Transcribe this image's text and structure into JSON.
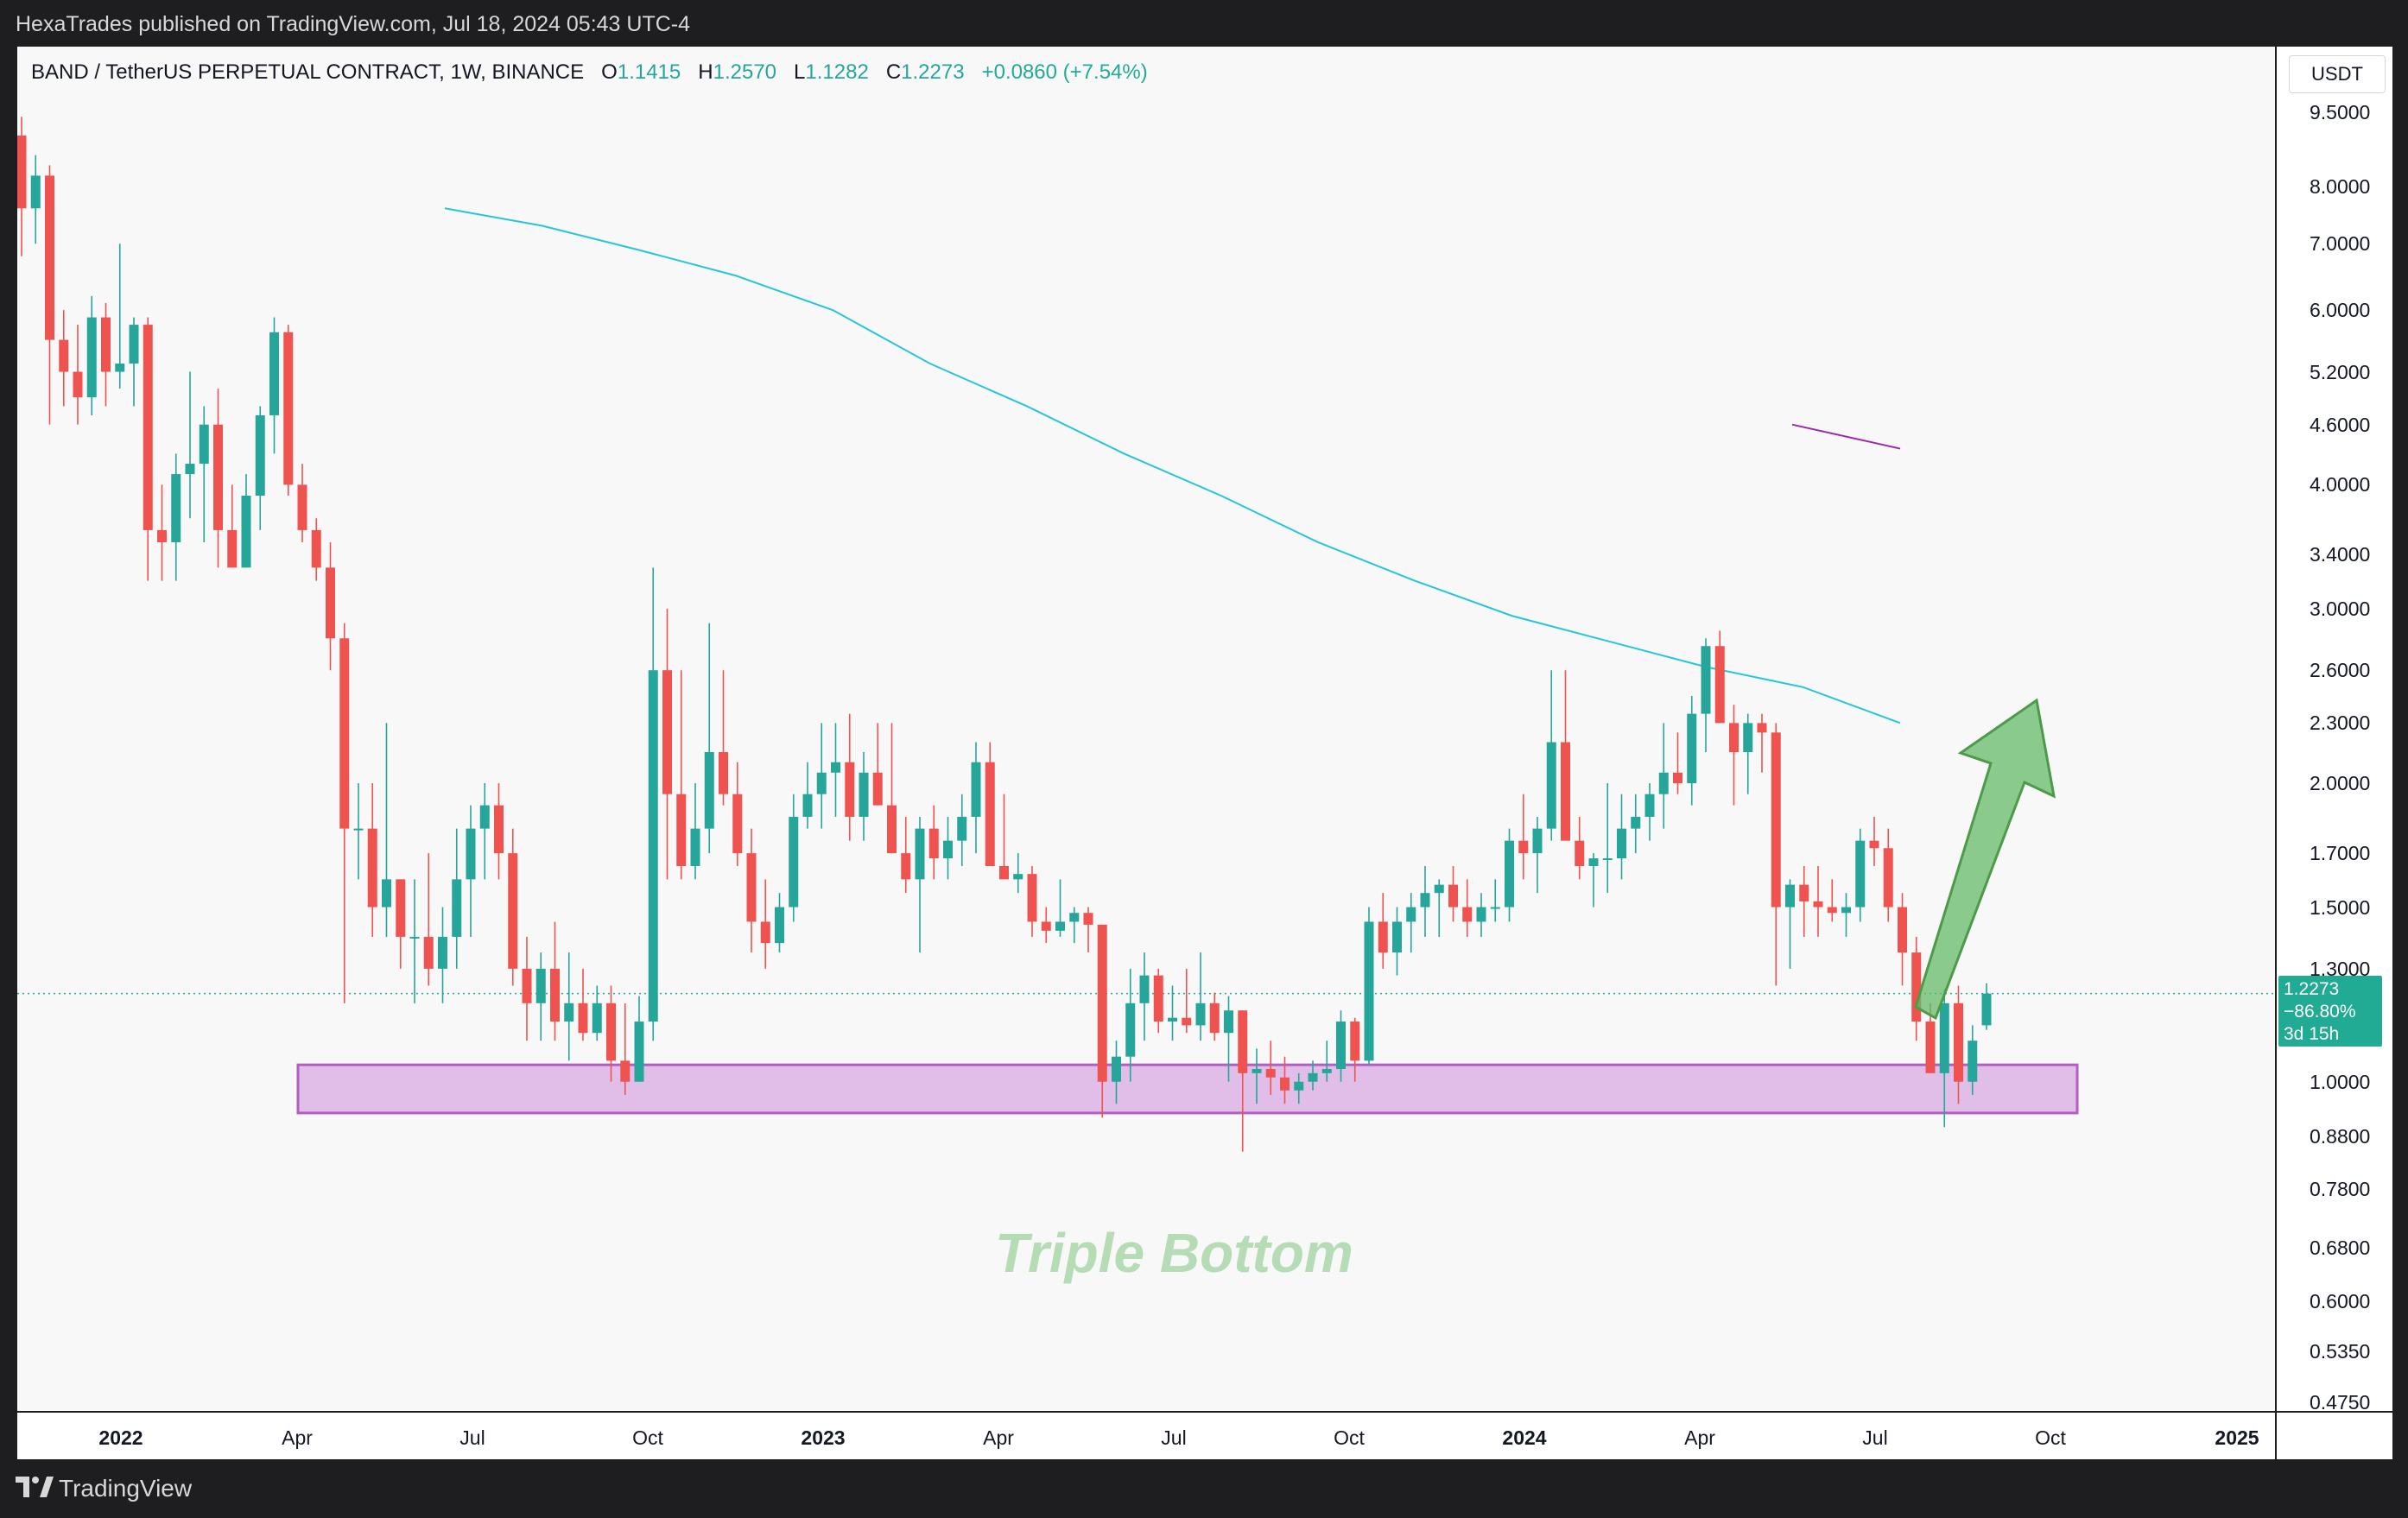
{
  "header": {
    "published": "HexaTrades published on TradingView.com, Jul 18, 2024 05:43 UTC-4"
  },
  "legend": {
    "symbol": "BAND / TetherUS PERPETUAL CONTRACT, 1W, BINANCE",
    "o_label": "O",
    "o_value": "1.1415",
    "h_label": "H",
    "h_value": "1.2570",
    "l_label": "L",
    "l_value": "1.1282",
    "c_label": "C",
    "c_value": "1.2273",
    "change": "+0.0860 (+7.54%)"
  },
  "currency": "USDT",
  "price_label": {
    "price": "1.2273",
    "change": "−86.80%",
    "countdown": "3d 15h"
  },
  "annotation": {
    "text": "Triple Bottom"
  },
  "footer": {
    "brand": "TradingView"
  },
  "colors": {
    "up": "#26a69a",
    "down": "#ef5350",
    "ma_long": "#26c6da",
    "ma_short": "#9c27b0",
    "zone": "#e1bee7",
    "arrow": "#66bb6a"
  },
  "price_axis": [
    "9.5000",
    "8.0000",
    "7.0000",
    "6.0000",
    "5.2000",
    "4.6000",
    "4.0000",
    "3.4000",
    "3.0000",
    "2.6000",
    "2.3000",
    "2.0000",
    "1.7000",
    "1.5000",
    "1.3000",
    "1.0000",
    "0.8800",
    "0.7800",
    "0.6800",
    "0.6000",
    "0.5350",
    "0.4750"
  ],
  "time_axis": [
    {
      "label": "2022",
      "year": true
    },
    {
      "label": "Apr",
      "year": false
    },
    {
      "label": "Jul",
      "year": false
    },
    {
      "label": "Oct",
      "year": false
    },
    {
      "label": "2023",
      "year": true
    },
    {
      "label": "Apr",
      "year": false
    },
    {
      "label": "Jul",
      "year": false
    },
    {
      "label": "Oct",
      "year": false
    },
    {
      "label": "2024",
      "year": true
    },
    {
      "label": "Apr",
      "year": false
    },
    {
      "label": "Jul",
      "year": false
    },
    {
      "label": "Oct",
      "year": false
    },
    {
      "label": "2025",
      "year": true
    }
  ],
  "chart_data": {
    "type": "candlestick",
    "interval": "1W",
    "y_scale": "log",
    "ylim": [
      0.47,
      9.6
    ],
    "current_price": 1.2273,
    "support_zone": [
      0.93,
      1.04
    ],
    "series": [
      {
        "name": "BAND/USDT",
        "ohlc": [
          [
            9.0,
            9.4,
            6.8,
            7.6
          ],
          [
            7.6,
            8.6,
            7.0,
            8.2
          ],
          [
            8.2,
            8.4,
            4.6,
            5.6
          ],
          [
            5.6,
            6.0,
            4.8,
            5.2
          ],
          [
            5.2,
            5.8,
            4.6,
            4.9
          ],
          [
            4.9,
            6.2,
            4.7,
            5.9
          ],
          [
            5.9,
            6.1,
            4.8,
            5.2
          ],
          [
            5.2,
            7.0,
            5.0,
            5.3
          ],
          [
            5.3,
            5.9,
            4.8,
            5.8
          ],
          [
            5.8,
            5.9,
            3.2,
            3.6
          ],
          [
            3.6,
            4.0,
            3.2,
            3.5
          ],
          [
            3.5,
            4.3,
            3.2,
            4.1
          ],
          [
            4.1,
            5.2,
            3.7,
            4.2
          ],
          [
            4.2,
            4.8,
            3.5,
            4.6
          ],
          [
            4.6,
            5.0,
            3.3,
            3.6
          ],
          [
            3.6,
            4.0,
            3.3,
            3.3
          ],
          [
            3.3,
            4.1,
            3.3,
            3.9
          ],
          [
            3.9,
            4.8,
            3.6,
            4.7
          ],
          [
            4.7,
            5.9,
            4.3,
            5.7
          ],
          [
            5.7,
            5.8,
            3.9,
            4.0
          ],
          [
            4.0,
            4.2,
            3.5,
            3.6
          ],
          [
            3.6,
            3.7,
            3.2,
            3.3
          ],
          [
            3.3,
            3.5,
            2.6,
            2.8
          ],
          [
            2.8,
            2.9,
            1.2,
            1.8
          ],
          [
            1.8,
            2.0,
            1.6,
            1.8
          ],
          [
            1.8,
            2.0,
            1.4,
            1.5
          ],
          [
            1.5,
            2.3,
            1.4,
            1.6
          ],
          [
            1.6,
            1.6,
            1.3,
            1.4
          ],
          [
            1.4,
            1.6,
            1.2,
            1.4
          ],
          [
            1.4,
            1.7,
            1.25,
            1.3
          ],
          [
            1.3,
            1.5,
            1.2,
            1.4
          ],
          [
            1.4,
            1.8,
            1.3,
            1.6
          ],
          [
            1.6,
            1.9,
            1.4,
            1.8
          ],
          [
            1.8,
            2.0,
            1.6,
            1.9
          ],
          [
            1.9,
            2.0,
            1.6,
            1.7
          ],
          [
            1.7,
            1.8,
            1.25,
            1.3
          ],
          [
            1.3,
            1.4,
            1.1,
            1.2
          ],
          [
            1.2,
            1.35,
            1.1,
            1.3
          ],
          [
            1.3,
            1.45,
            1.1,
            1.15
          ],
          [
            1.15,
            1.35,
            1.05,
            1.2
          ],
          [
            1.2,
            1.3,
            1.1,
            1.12
          ],
          [
            1.12,
            1.25,
            1.1,
            1.2
          ],
          [
            1.2,
            1.25,
            1.0,
            1.05
          ],
          [
            1.05,
            1.2,
            0.97,
            1.0
          ],
          [
            1.0,
            1.22,
            1.0,
            1.15
          ],
          [
            1.15,
            3.3,
            1.1,
            2.6
          ],
          [
            2.6,
            3.0,
            1.6,
            1.95
          ],
          [
            1.95,
            2.6,
            1.6,
            1.65
          ],
          [
            1.65,
            2.0,
            1.6,
            1.8
          ],
          [
            1.8,
            2.9,
            1.7,
            2.15
          ],
          [
            2.15,
            2.6,
            1.9,
            1.95
          ],
          [
            1.95,
            2.1,
            1.65,
            1.7
          ],
          [
            1.7,
            1.8,
            1.35,
            1.45
          ],
          [
            1.45,
            1.6,
            1.3,
            1.38
          ],
          [
            1.38,
            1.55,
            1.35,
            1.5
          ],
          [
            1.5,
            1.95,
            1.45,
            1.85
          ],
          [
            1.85,
            2.1,
            1.8,
            1.95
          ],
          [
            1.95,
            2.3,
            1.8,
            2.05
          ],
          [
            2.05,
            2.3,
            1.85,
            2.1
          ],
          [
            2.1,
            2.35,
            1.75,
            1.85
          ],
          [
            1.85,
            2.15,
            1.75,
            2.05
          ],
          [
            2.05,
            2.3,
            1.9,
            1.9
          ],
          [
            1.9,
            2.3,
            1.7,
            1.7
          ],
          [
            1.7,
            1.85,
            1.55,
            1.6
          ],
          [
            1.6,
            1.85,
            1.35,
            1.8
          ],
          [
            1.8,
            1.9,
            1.6,
            1.68
          ],
          [
            1.68,
            1.85,
            1.6,
            1.75
          ],
          [
            1.75,
            1.95,
            1.65,
            1.85
          ],
          [
            1.85,
            2.2,
            1.7,
            2.1
          ],
          [
            2.1,
            2.2,
            1.65,
            1.65
          ],
          [
            1.65,
            1.95,
            1.6,
            1.6
          ],
          [
            1.6,
            1.7,
            1.55,
            1.62
          ],
          [
            1.62,
            1.65,
            1.4,
            1.45
          ],
          [
            1.45,
            1.5,
            1.38,
            1.42
          ],
          [
            1.42,
            1.6,
            1.4,
            1.45
          ],
          [
            1.45,
            1.5,
            1.38,
            1.48
          ],
          [
            1.48,
            1.5,
            1.35,
            1.44
          ],
          [
            1.44,
            1.44,
            0.92,
            1.0
          ],
          [
            1.0,
            1.1,
            0.95,
            1.06
          ],
          [
            1.06,
            1.3,
            1.0,
            1.2
          ],
          [
            1.2,
            1.35,
            1.1,
            1.28
          ],
          [
            1.28,
            1.3,
            1.12,
            1.15
          ],
          [
            1.15,
            1.25,
            1.1,
            1.16
          ],
          [
            1.16,
            1.3,
            1.12,
            1.14
          ],
          [
            1.14,
            1.35,
            1.1,
            1.2
          ],
          [
            1.2,
            1.23,
            1.1,
            1.12
          ],
          [
            1.12,
            1.22,
            1.0,
            1.18
          ],
          [
            1.18,
            1.18,
            0.85,
            1.02
          ],
          [
            1.02,
            1.08,
            0.95,
            1.03
          ],
          [
            1.03,
            1.1,
            0.97,
            1.01
          ],
          [
            1.01,
            1.06,
            0.95,
            0.98
          ],
          [
            0.98,
            1.02,
            0.95,
            1.0
          ],
          [
            1.0,
            1.05,
            0.98,
            1.02
          ],
          [
            1.02,
            1.1,
            1.0,
            1.03
          ],
          [
            1.03,
            1.18,
            1.0,
            1.15
          ],
          [
            1.15,
            1.16,
            1.0,
            1.05
          ],
          [
            1.05,
            1.5,
            1.04,
            1.45
          ],
          [
            1.45,
            1.55,
            1.3,
            1.35
          ],
          [
            1.35,
            1.5,
            1.28,
            1.45
          ],
          [
            1.45,
            1.55,
            1.35,
            1.5
          ],
          [
            1.5,
            1.65,
            1.4,
            1.55
          ],
          [
            1.55,
            1.6,
            1.4,
            1.58
          ],
          [
            1.58,
            1.65,
            1.45,
            1.5
          ],
          [
            1.5,
            1.6,
            1.4,
            1.45
          ],
          [
            1.45,
            1.55,
            1.4,
            1.5
          ],
          [
            1.5,
            1.6,
            1.45,
            1.5
          ],
          [
            1.5,
            1.8,
            1.45,
            1.75
          ],
          [
            1.75,
            1.95,
            1.6,
            1.7
          ],
          [
            1.7,
            1.85,
            1.55,
            1.8
          ],
          [
            1.8,
            2.6,
            1.75,
            2.2
          ],
          [
            2.2,
            2.6,
            1.75,
            1.75
          ],
          [
            1.75,
            1.85,
            1.6,
            1.65
          ],
          [
            1.65,
            1.7,
            1.5,
            1.68
          ],
          [
            1.68,
            2.0,
            1.55,
            1.68
          ],
          [
            1.68,
            1.95,
            1.6,
            1.8
          ],
          [
            1.8,
            1.95,
            1.7,
            1.85
          ],
          [
            1.85,
            2.0,
            1.75,
            1.95
          ],
          [
            1.95,
            2.3,
            1.8,
            2.05
          ],
          [
            2.05,
            2.25,
            1.95,
            2.0
          ],
          [
            2.0,
            2.45,
            1.9,
            2.35
          ],
          [
            2.35,
            2.8,
            2.15,
            2.75
          ],
          [
            2.75,
            2.85,
            2.3,
            2.3
          ],
          [
            2.3,
            2.4,
            1.9,
            2.15
          ],
          [
            2.15,
            2.35,
            1.95,
            2.3
          ],
          [
            2.3,
            2.35,
            2.05,
            2.25
          ],
          [
            2.25,
            2.3,
            1.25,
            1.5
          ],
          [
            1.5,
            1.6,
            1.3,
            1.58
          ],
          [
            1.58,
            1.65,
            1.4,
            1.52
          ],
          [
            1.52,
            1.65,
            1.4,
            1.5
          ],
          [
            1.5,
            1.6,
            1.45,
            1.48
          ],
          [
            1.48,
            1.55,
            1.4,
            1.5
          ],
          [
            1.5,
            1.8,
            1.45,
            1.75
          ],
          [
            1.75,
            1.85,
            1.65,
            1.72
          ],
          [
            1.72,
            1.8,
            1.45,
            1.5
          ],
          [
            1.5,
            1.55,
            1.25,
            1.35
          ],
          [
            1.35,
            1.4,
            1.1,
            1.15
          ],
          [
            1.15,
            1.2,
            1.05,
            1.02
          ],
          [
            1.02,
            1.24,
            0.9,
            1.2
          ],
          [
            1.2,
            1.25,
            0.95,
            1.0
          ],
          [
            1.0,
            1.14,
            0.97,
            1.1
          ],
          [
            1.14,
            1.257,
            1.128,
            1.2273
          ]
        ]
      },
      {
        "name": "MA long",
        "values": [
          7.6,
          7.3,
          6.9,
          6.5,
          6.0,
          5.3,
          4.8,
          4.3,
          3.9,
          3.5,
          3.2,
          2.95,
          2.78,
          2.62,
          2.5,
          2.3
        ]
      },
      {
        "name": "MA short",
        "values": [
          4.6,
          4.35
        ]
      }
    ]
  }
}
